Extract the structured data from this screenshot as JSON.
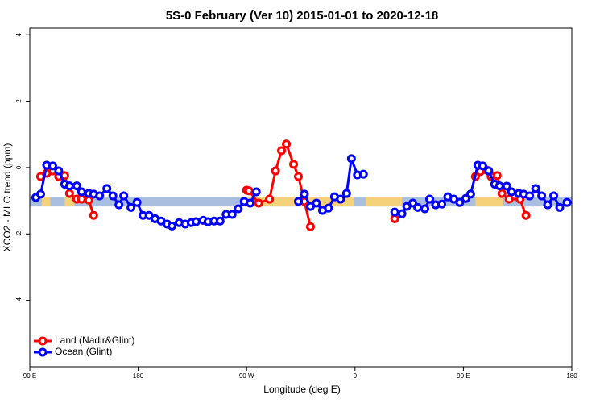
{
  "chart_data": {
    "type": "line",
    "title": "5S-0 February (Ver 10)   2015-01-01 to 2020-12-18",
    "x_label": "Longitude (deg E)",
    "y_label": "XCO2 - MLO trend (ppm)",
    "xlim": [
      90,
      540
    ],
    "ylim": [
      -6,
      4.2
    ],
    "xticks": [
      {
        "value": 90,
        "label": "90 E"
      },
      {
        "value": 180,
        "label": "180"
      },
      {
        "value": 270,
        "label": "90 W"
      },
      {
        "value": 360,
        "label": "0"
      },
      {
        "value": 450,
        "label": "90 E"
      },
      {
        "value": 540,
        "label": "180"
      }
    ],
    "yticks": [
      4,
      2,
      0,
      -2,
      -4
    ],
    "legend": "bottom-left",
    "surface_band": {
      "ymin": -1.17,
      "ymax": -0.88,
      "ocean_color": "#a8bfe0",
      "land_color": "#f5d27a",
      "land_spans": [
        [
          100,
          107
        ],
        [
          119,
          127
        ],
        [
          266,
          359
        ],
        [
          369,
          399
        ],
        [
          460,
          483
        ]
      ]
    },
    "series": [
      {
        "name": "Land (Nadir&Glint)",
        "color": "#ff0000",
        "x": [
          99,
          104,
          109,
          114,
          119,
          123,
          129,
          133,
          139,
          143,
          150,
          270,
          272,
          280,
          289,
          294,
          299,
          303,
          309,
          313,
          318,
          323,
          330,
          393,
          400,
          460,
          464,
          469,
          473,
          478,
          482,
          488,
          497,
          502
        ],
        "values": [
          -0.27,
          -0.17,
          -0.1,
          -0.27,
          -0.24,
          -0.78,
          -0.95,
          -0.95,
          -0.98,
          -1.44,
          null,
          -0.68,
          -0.7,
          -1.07,
          -0.95,
          -0.1,
          0.51,
          0.71,
          0.1,
          -0.27,
          -1.02,
          -1.78,
          null,
          -1.54,
          null,
          -0.27,
          -0.12,
          -0.07,
          -0.27,
          -0.24,
          -0.78,
          -0.95,
          -0.95,
          -1.44
        ]
      },
      {
        "name": "Ocean (Glint)",
        "color": "#0000ff",
        "x": [
          95,
          99,
          104,
          109,
          114,
          119,
          123,
          129,
          133,
          139,
          143,
          148,
          154,
          159,
          164,
          168,
          174,
          179,
          184,
          189,
          194,
          199,
          204,
          208,
          214,
          219,
          224,
          228,
          234,
          238,
          243,
          248,
          253,
          258,
          263,
          268,
          273,
          278,
          290,
          313,
          318,
          323,
          328,
          333,
          338,
          343,
          348,
          353,
          357,
          362,
          367,
          380,
          393,
          399,
          403,
          408,
          412,
          418,
          422,
          427,
          432,
          437,
          442,
          447,
          452,
          456,
          462,
          466,
          471,
          476,
          480,
          486,
          490,
          496,
          500,
          505,
          510,
          515,
          520,
          525,
          530,
          536
        ],
        "values": [
          -0.9,
          -0.8,
          0.07,
          0.05,
          -0.1,
          -0.5,
          -0.55,
          -0.55,
          -0.73,
          -0.78,
          -0.8,
          -0.85,
          -0.63,
          -0.85,
          -1.12,
          -0.85,
          -1.2,
          -1.05,
          -1.44,
          -1.44,
          -1.54,
          -1.61,
          -1.7,
          -1.76,
          -1.66,
          -1.7,
          -1.66,
          -1.63,
          -1.59,
          -1.63,
          -1.61,
          -1.61,
          -1.41,
          -1.41,
          -1.24,
          -1.02,
          -1.07,
          -0.73,
          null,
          -1.02,
          -0.8,
          -1.17,
          -1.07,
          -1.29,
          -1.22,
          -0.88,
          -0.95,
          -0.78,
          0.27,
          -0.22,
          -0.2,
          null,
          -1.34,
          -1.39,
          -1.17,
          -1.07,
          -1.2,
          -1.24,
          -0.95,
          -1.12,
          -1.1,
          -0.88,
          -0.95,
          -1.05,
          -0.93,
          -0.8,
          0.07,
          0.05,
          -0.1,
          -0.5,
          -0.55,
          -0.56,
          -0.73,
          -0.78,
          -0.8,
          -0.85,
          -0.63,
          -0.85,
          -1.12,
          -0.85,
          -1.2,
          -1.05
        ]
      }
    ]
  }
}
